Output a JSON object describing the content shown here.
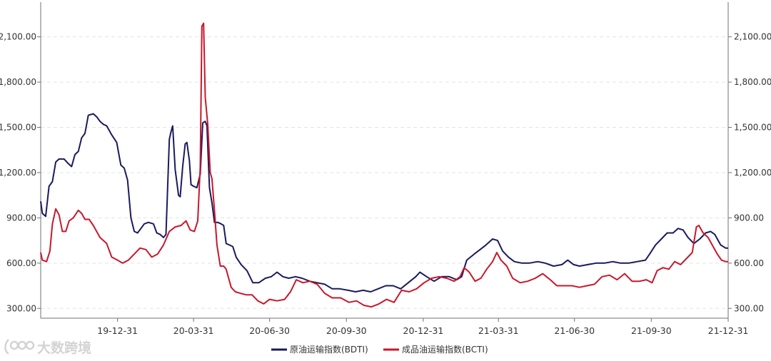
{
  "watermark": {
    "text": "大数跨境",
    "icon": "watermark-logo-icon"
  },
  "chart_data": {
    "type": "line",
    "x_tick_labels": [
      "19-12-31",
      "20-03-31",
      "20-06-30",
      "20-09-30",
      "20-12-31",
      "21-03-31",
      "21-06-30",
      "21-09-30",
      "21-12-31"
    ],
    "x_range": [
      "2019-09-30",
      "2021-12-31"
    ],
    "y_left_ticks": [
      "300.00",
      "600.00",
      "900.00",
      "1,200.00",
      "1,500.00",
      "1,800.00",
      "2,100.00"
    ],
    "y_right_ticks": [
      "300.00",
      "600.00",
      "900.00",
      "1,200.00",
      "1,500.00",
      "1,800.00",
      "2,100.00"
    ],
    "ylim": [
      235,
      2330
    ],
    "grid": "horizontal-dashed",
    "legend_position": "bottom-center",
    "series": [
      {
        "name": "原油运输指数(BDTI)",
        "color": "#1a1a5e",
        "points": [
          [
            "2019-09-30",
            1010
          ],
          [
            "2019-10-02",
            930
          ],
          [
            "2019-10-06",
            910
          ],
          [
            "2019-10-10",
            1110
          ],
          [
            "2019-10-14",
            1140
          ],
          [
            "2019-10-18",
            1270
          ],
          [
            "2019-10-22",
            1290
          ],
          [
            "2019-10-28",
            1290
          ],
          [
            "2019-11-02",
            1260
          ],
          [
            "2019-11-06",
            1240
          ],
          [
            "2019-11-10",
            1320
          ],
          [
            "2019-11-14",
            1340
          ],
          [
            "2019-11-18",
            1430
          ],
          [
            "2019-11-22",
            1460
          ],
          [
            "2019-11-26",
            1580
          ],
          [
            "2019-12-02",
            1590
          ],
          [
            "2019-12-06",
            1570
          ],
          [
            "2019-12-10",
            1540
          ],
          [
            "2019-12-14",
            1520
          ],
          [
            "2019-12-18",
            1510
          ],
          [
            "2019-12-24",
            1450
          ],
          [
            "2019-12-30",
            1400
          ],
          [
            "2020-01-04",
            1250
          ],
          [
            "2020-01-08",
            1230
          ],
          [
            "2020-01-12",
            1150
          ],
          [
            "2020-01-16",
            900
          ],
          [
            "2020-01-20",
            810
          ],
          [
            "2020-01-24",
            800
          ],
          [
            "2020-01-28",
            830
          ],
          [
            "2020-02-01",
            860
          ],
          [
            "2020-02-06",
            870
          ],
          [
            "2020-02-12",
            860
          ],
          [
            "2020-02-16",
            800
          ],
          [
            "2020-02-20",
            790
          ],
          [
            "2020-02-24",
            770
          ],
          [
            "2020-02-27",
            790
          ],
          [
            "2020-03-02",
            1420
          ],
          [
            "2020-03-04",
            1470
          ],
          [
            "2020-03-06",
            1510
          ],
          [
            "2020-03-09",
            1220
          ],
          [
            "2020-03-13",
            1050
          ],
          [
            "2020-03-15",
            1040
          ],
          [
            "2020-03-18",
            1240
          ],
          [
            "2020-03-21",
            1390
          ],
          [
            "2020-03-23",
            1400
          ],
          [
            "2020-03-26",
            1280
          ],
          [
            "2020-03-28",
            1120
          ],
          [
            "2020-03-31",
            1110
          ],
          [
            "2020-04-04",
            1100
          ],
          [
            "2020-04-08",
            1190
          ],
          [
            "2020-04-11",
            1530
          ],
          [
            "2020-04-14",
            1540
          ],
          [
            "2020-04-16",
            1510
          ],
          [
            "2020-04-19",
            1100
          ],
          [
            "2020-04-22",
            1000
          ],
          [
            "2020-04-25",
            870
          ],
          [
            "2020-04-29",
            870
          ],
          [
            "2020-05-03",
            860
          ],
          [
            "2020-05-06",
            850
          ],
          [
            "2020-05-09",
            730
          ],
          [
            "2020-05-13",
            720
          ],
          [
            "2020-05-17",
            710
          ],
          [
            "2020-05-21",
            640
          ],
          [
            "2020-05-27",
            590
          ],
          [
            "2020-06-03",
            550
          ],
          [
            "2020-06-10",
            470
          ],
          [
            "2020-06-17",
            470
          ],
          [
            "2020-06-25",
            500
          ],
          [
            "2020-07-02",
            510
          ],
          [
            "2020-07-09",
            540
          ],
          [
            "2020-07-16",
            510
          ],
          [
            "2020-07-23",
            500
          ],
          [
            "2020-07-31",
            510
          ],
          [
            "2020-08-08",
            500
          ],
          [
            "2020-08-17",
            480
          ],
          [
            "2020-08-26",
            470
          ],
          [
            "2020-09-04",
            460
          ],
          [
            "2020-09-13",
            430
          ],
          [
            "2020-09-22",
            430
          ],
          [
            "2020-10-02",
            420
          ],
          [
            "2020-10-11",
            410
          ],
          [
            "2020-10-20",
            420
          ],
          [
            "2020-10-29",
            410
          ],
          [
            "2020-11-07",
            430
          ],
          [
            "2020-11-16",
            450
          ],
          [
            "2020-11-25",
            450
          ],
          [
            "2020-12-04",
            430
          ],
          [
            "2020-12-13",
            470
          ],
          [
            "2020-12-22",
            510
          ],
          [
            "2020-12-27",
            540
          ],
          [
            "2021-01-04",
            510
          ],
          [
            "2021-01-13",
            480
          ],
          [
            "2021-01-22",
            510
          ],
          [
            "2021-01-31",
            510
          ],
          [
            "2021-02-09",
            490
          ],
          [
            "2021-02-15",
            510
          ],
          [
            "2021-02-21",
            620
          ],
          [
            "2021-03-02",
            660
          ],
          [
            "2021-03-09",
            690
          ],
          [
            "2021-03-16",
            720
          ],
          [
            "2021-03-24",
            760
          ],
          [
            "2021-03-30",
            750
          ],
          [
            "2021-04-05",
            680
          ],
          [
            "2021-04-12",
            640
          ],
          [
            "2021-04-19",
            610
          ],
          [
            "2021-04-28",
            600
          ],
          [
            "2021-05-07",
            600
          ],
          [
            "2021-05-17",
            610
          ],
          [
            "2021-05-26",
            600
          ],
          [
            "2021-06-05",
            580
          ],
          [
            "2021-06-15",
            590
          ],
          [
            "2021-06-22",
            620
          ],
          [
            "2021-06-29",
            590
          ],
          [
            "2021-07-06",
            580
          ],
          [
            "2021-07-16",
            590
          ],
          [
            "2021-07-26",
            600
          ],
          [
            "2021-08-05",
            600
          ],
          [
            "2021-08-15",
            610
          ],
          [
            "2021-08-24",
            600
          ],
          [
            "2021-09-03",
            600
          ],
          [
            "2021-09-13",
            610
          ],
          [
            "2021-09-23",
            620
          ],
          [
            "2021-09-28",
            660
          ],
          [
            "2021-10-05",
            720
          ],
          [
            "2021-10-12",
            760
          ],
          [
            "2021-10-19",
            800
          ],
          [
            "2021-10-26",
            800
          ],
          [
            "2021-11-01",
            830
          ],
          [
            "2021-11-07",
            820
          ],
          [
            "2021-11-13",
            770
          ],
          [
            "2021-11-20",
            730
          ],
          [
            "2021-11-27",
            760
          ],
          [
            "2021-12-04",
            800
          ],
          [
            "2021-12-10",
            810
          ],
          [
            "2021-12-15",
            790
          ],
          [
            "2021-12-22",
            720
          ],
          [
            "2021-12-28",
            700
          ],
          [
            "2021-12-31",
            700
          ]
        ]
      },
      {
        "name": "成品油运输指数(BCTI)",
        "color": "#c8182a",
        "points": [
          [
            "2019-09-30",
            670
          ],
          [
            "2019-10-02",
            620
          ],
          [
            "2019-10-07",
            610
          ],
          [
            "2019-10-11",
            680
          ],
          [
            "2019-10-14",
            860
          ],
          [
            "2019-10-18",
            960
          ],
          [
            "2019-10-22",
            920
          ],
          [
            "2019-10-26",
            810
          ],
          [
            "2019-10-30",
            810
          ],
          [
            "2019-11-03",
            880
          ],
          [
            "2019-11-08",
            900
          ],
          [
            "2019-11-14",
            950
          ],
          [
            "2019-11-18",
            930
          ],
          [
            "2019-11-22",
            890
          ],
          [
            "2019-11-27",
            890
          ],
          [
            "2019-12-02",
            850
          ],
          [
            "2019-12-10",
            770
          ],
          [
            "2019-12-18",
            730
          ],
          [
            "2019-12-24",
            640
          ],
          [
            "2019-12-31",
            620
          ],
          [
            "2020-01-06",
            600
          ],
          [
            "2020-01-13",
            620
          ],
          [
            "2020-01-20",
            660
          ],
          [
            "2020-01-27",
            700
          ],
          [
            "2020-02-03",
            690
          ],
          [
            "2020-02-10",
            640
          ],
          [
            "2020-02-17",
            660
          ],
          [
            "2020-02-24",
            720
          ],
          [
            "2020-03-02",
            810
          ],
          [
            "2020-03-09",
            840
          ],
          [
            "2020-03-16",
            850
          ],
          [
            "2020-03-22",
            880
          ],
          [
            "2020-03-27",
            820
          ],
          [
            "2020-04-01",
            810
          ],
          [
            "2020-04-05",
            880
          ],
          [
            "2020-04-08",
            1240
          ],
          [
            "2020-04-10",
            2170
          ],
          [
            "2020-04-12",
            2190
          ],
          [
            "2020-04-14",
            1700
          ],
          [
            "2020-04-17",
            1520
          ],
          [
            "2020-04-20",
            1200
          ],
          [
            "2020-04-22",
            1160
          ],
          [
            "2020-04-25",
            950
          ],
          [
            "2020-04-28",
            720
          ],
          [
            "2020-05-02",
            580
          ],
          [
            "2020-05-06",
            580
          ],
          [
            "2020-05-09",
            560
          ],
          [
            "2020-05-12",
            500
          ],
          [
            "2020-05-15",
            440
          ],
          [
            "2020-05-20",
            410
          ],
          [
            "2020-05-26",
            400
          ],
          [
            "2020-06-02",
            390
          ],
          [
            "2020-06-09",
            390
          ],
          [
            "2020-06-16",
            350
          ],
          [
            "2020-06-23",
            330
          ],
          [
            "2020-06-30",
            360
          ],
          [
            "2020-07-09",
            350
          ],
          [
            "2020-07-18",
            360
          ],
          [
            "2020-07-25",
            410
          ],
          [
            "2020-08-01",
            490
          ],
          [
            "2020-08-09",
            470
          ],
          [
            "2020-08-17",
            480
          ],
          [
            "2020-08-26",
            460
          ],
          [
            "2020-09-04",
            400
          ],
          [
            "2020-09-13",
            370
          ],
          [
            "2020-09-23",
            370
          ],
          [
            "2020-10-03",
            340
          ],
          [
            "2020-10-12",
            350
          ],
          [
            "2020-10-21",
            320
          ],
          [
            "2020-10-30",
            310
          ],
          [
            "2020-11-08",
            330
          ],
          [
            "2020-11-17",
            360
          ],
          [
            "2020-11-26",
            340
          ],
          [
            "2020-12-05",
            420
          ],
          [
            "2020-12-14",
            410
          ],
          [
            "2020-12-23",
            430
          ],
          [
            "2021-01-01",
            470
          ],
          [
            "2021-01-10",
            500
          ],
          [
            "2021-01-19",
            510
          ],
          [
            "2021-01-28",
            500
          ],
          [
            "2021-02-06",
            480
          ],
          [
            "2021-02-13",
            510
          ],
          [
            "2021-02-18",
            570
          ],
          [
            "2021-02-24",
            540
          ],
          [
            "2021-03-03",
            480
          ],
          [
            "2021-03-10",
            500
          ],
          [
            "2021-03-17",
            560
          ],
          [
            "2021-03-24",
            610
          ],
          [
            "2021-03-29",
            670
          ],
          [
            "2021-04-03",
            620
          ],
          [
            "2021-04-10",
            580
          ],
          [
            "2021-04-17",
            500
          ],
          [
            "2021-04-26",
            470
          ],
          [
            "2021-05-05",
            480
          ],
          [
            "2021-05-14",
            500
          ],
          [
            "2021-05-23",
            530
          ],
          [
            "2021-06-01",
            490
          ],
          [
            "2021-06-09",
            450
          ],
          [
            "2021-06-18",
            450
          ],
          [
            "2021-06-27",
            450
          ],
          [
            "2021-07-06",
            440
          ],
          [
            "2021-07-15",
            450
          ],
          [
            "2021-07-24",
            460
          ],
          [
            "2021-08-02",
            510
          ],
          [
            "2021-08-11",
            520
          ],
          [
            "2021-08-20",
            490
          ],
          [
            "2021-08-29",
            530
          ],
          [
            "2021-09-07",
            480
          ],
          [
            "2021-09-16",
            480
          ],
          [
            "2021-09-24",
            490
          ],
          [
            "2021-10-01",
            470
          ],
          [
            "2021-10-07",
            550
          ],
          [
            "2021-10-14",
            570
          ],
          [
            "2021-10-21",
            560
          ],
          [
            "2021-10-28",
            610
          ],
          [
            "2021-11-04",
            590
          ],
          [
            "2021-11-11",
            630
          ],
          [
            "2021-11-18",
            670
          ],
          [
            "2021-11-23",
            840
          ],
          [
            "2021-11-26",
            850
          ],
          [
            "2021-12-01",
            800
          ],
          [
            "2021-12-07",
            770
          ],
          [
            "2021-12-13",
            710
          ],
          [
            "2021-12-18",
            660
          ],
          [
            "2021-12-23",
            620
          ],
          [
            "2021-12-28",
            610
          ],
          [
            "2021-12-31",
            610
          ]
        ]
      }
    ]
  }
}
